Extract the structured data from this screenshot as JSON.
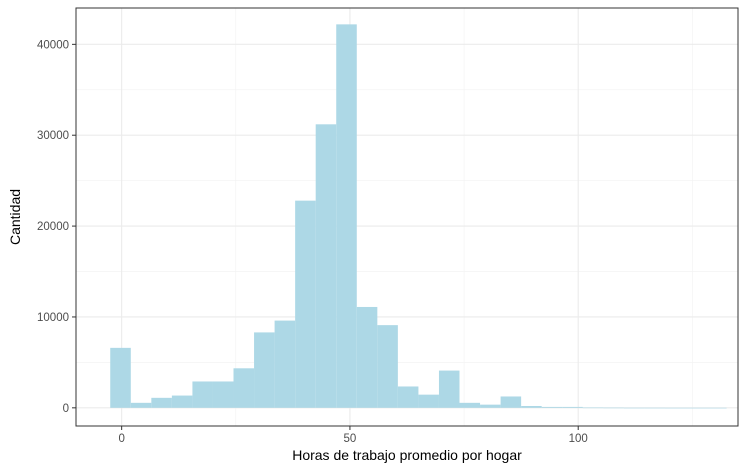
{
  "chart_data": {
    "type": "bar",
    "subtype": "histogram",
    "xlabel": "Horas de trabajo promedio por hogar",
    "ylabel": "Cantidad",
    "xlim": [
      -10,
      135
    ],
    "ylim": [
      -2000,
      44000
    ],
    "x_ticks": [
      0,
      50,
      100
    ],
    "y_ticks": [
      0,
      10000,
      20000,
      30000,
      40000
    ],
    "x_minor": [
      -25,
      25,
      75,
      125
    ],
    "y_minor": [
      5000,
      15000,
      25000,
      35000
    ],
    "bin_width": 4.5,
    "bins": [
      {
        "x0": -2.5,
        "count": 6600
      },
      {
        "x0": 2.0,
        "count": 550
      },
      {
        "x0": 6.5,
        "count": 1100
      },
      {
        "x0": 11.0,
        "count": 1350
      },
      {
        "x0": 15.5,
        "count": 2900
      },
      {
        "x0": 20.0,
        "count": 2900
      },
      {
        "x0": 24.5,
        "count": 4350
      },
      {
        "x0": 29.0,
        "count": 8300
      },
      {
        "x0": 33.5,
        "count": 9600
      },
      {
        "x0": 38.0,
        "count": 22800
      },
      {
        "x0": 42.5,
        "count": 31200
      },
      {
        "x0": 47.0,
        "count": 42200
      },
      {
        "x0": 51.5,
        "count": 11100
      },
      {
        "x0": 56.0,
        "count": 9100
      },
      {
        "x0": 60.5,
        "count": 2350
      },
      {
        "x0": 65.0,
        "count": 1450
      },
      {
        "x0": 69.5,
        "count": 4100
      },
      {
        "x0": 74.0,
        "count": 550
      },
      {
        "x0": 78.5,
        "count": 350
      },
      {
        "x0": 83.0,
        "count": 1250
      },
      {
        "x0": 87.5,
        "count": 200
      },
      {
        "x0": 92.0,
        "count": 100
      },
      {
        "x0": 96.5,
        "count": 100
      },
      {
        "x0": 101.0,
        "count": 30
      },
      {
        "x0": 105.5,
        "count": 20
      },
      {
        "x0": 110.0,
        "count": 10
      },
      {
        "x0": 114.5,
        "count": 10
      },
      {
        "x0": 119.0,
        "count": 5
      },
      {
        "x0": 123.5,
        "count": 5
      },
      {
        "x0": 128.0,
        "count": 5
      }
    ],
    "bar_color": "#ADD8E6",
    "grid": true,
    "legend": "none"
  }
}
